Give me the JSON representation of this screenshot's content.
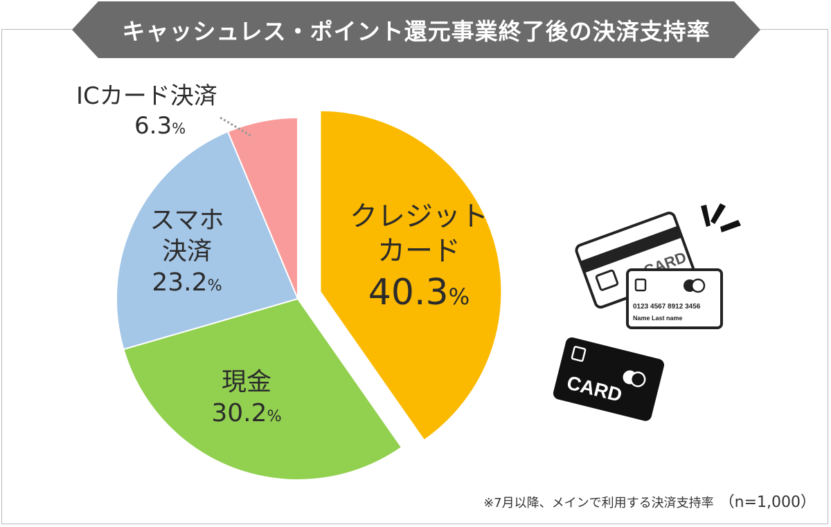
{
  "title": "キャッシュレス・ポイント還元事業終了後の決済支持率",
  "chart_data": {
    "type": "pie",
    "title": "キャッシュレス・ポイント還元事業終了後の決済支持率",
    "slices": [
      {
        "label_lines": [
          "クレジット",
          "カード"
        ],
        "value": 40.3,
        "color": "#FBBA00",
        "exploded": true
      },
      {
        "label_lines": [
          "現金"
        ],
        "value": 30.2,
        "color": "#92D050",
        "exploded": false
      },
      {
        "label_lines": [
          "スマホ",
          "決済"
        ],
        "value": 23.2,
        "color": "#A4C6E7",
        "exploded": false
      },
      {
        "label_lines": [
          "ICカード決済"
        ],
        "value": 6.3,
        "color": "#FA9B9B",
        "exploded": false
      }
    ],
    "unit": "%"
  },
  "labels": {
    "credit_line1": "クレジット",
    "credit_line2": "カード",
    "credit_value": "40.3",
    "cash_line1": "現金",
    "cash_value": "30.2",
    "smart_line1": "スマホ",
    "smart_line2": "決済",
    "smart_value": "23.2",
    "ic_line1": "ICカード決済",
    "ic_value": "6.3",
    "percent": "%"
  },
  "illustration": {
    "card_text": "CARD",
    "card_number": "0123  4567  8912  3456",
    "card_name": "Name  Last name"
  },
  "footnote": {
    "text": "※7月以降、メインで利用する決済支持率",
    "sample": "（n=1,000）"
  }
}
